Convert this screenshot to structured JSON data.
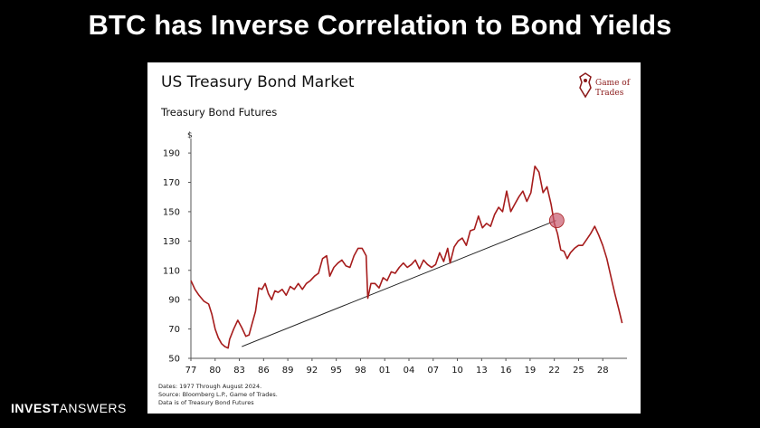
{
  "slide": {
    "title": "BTC has Inverse Correlation to Bond Yields",
    "brand_bold": "INVEST",
    "brand_light": "ANSWERS"
  },
  "logo": {
    "line1": "Game of",
    "line2": "Trades"
  },
  "chart_data": {
    "type": "line",
    "title": "US Treasury Bond Market",
    "subtitle": "Treasury Bond Futures",
    "ylabel": "$",
    "xlabel": "",
    "ylim": [
      50,
      195
    ],
    "xlim": [
      1977,
      2031
    ],
    "x_ticks": [
      1977,
      1980,
      1983,
      1986,
      1989,
      1992,
      1995,
      1998,
      2001,
      2004,
      2007,
      2010,
      2013,
      2016,
      2019,
      2022,
      2025,
      2028
    ],
    "x_tick_labels": [
      "77",
      "80",
      "83",
      "86",
      "89",
      "92",
      "95",
      "98",
      "01",
      "04",
      "07",
      "10",
      "13",
      "16",
      "19",
      "22",
      "25",
      "28"
    ],
    "y_ticks": [
      50,
      70,
      90,
      110,
      130,
      150,
      170,
      190
    ],
    "y_tick_labels": [
      "50",
      "70",
      "90",
      "110",
      "130",
      "150",
      "170",
      "190"
    ],
    "grid": false,
    "line_color": "#a61c1c",
    "series": [
      {
        "x": [
          1977.0,
          1977.5,
          1978.0,
          1978.6,
          1979.2,
          1979.6,
          1980.0,
          1980.4,
          1980.8,
          1981.2,
          1981.6,
          1981.8,
          1982.3,
          1982.8,
          1983.3,
          1983.8,
          1984.2,
          1984.5,
          1985.0,
          1985.4,
          1985.8,
          1986.2,
          1986.6,
          1987.0,
          1987.4,
          1987.8,
          1988.3,
          1988.8,
          1989.3,
          1989.8,
          1990.3,
          1990.8,
          1991.3,
          1991.8,
          1992.3,
          1992.8,
          1993.3,
          1993.8,
          1994.2,
          1994.7,
          1995.2,
          1995.7,
          1996.2,
          1996.7,
          1997.2,
          1997.7,
          1998.2,
          1998.7,
          1998.9,
          1999.3,
          1999.8,
          2000.3,
          2000.8,
          2001.3,
          2001.8,
          2002.3,
          2002.8,
          2003.3,
          2003.8,
          2004.3,
          2004.8,
          2005.3,
          2005.8,
          2006.3,
          2006.8,
          2007.3,
          2007.8,
          2008.3,
          2008.8,
          2009.1,
          2009.6,
          2010.1,
          2010.6,
          2011.1,
          2011.6,
          2012.1,
          2012.6,
          2013.1,
          2013.6,
          2014.1,
          2014.6,
          2015.1,
          2015.6,
          2016.1,
          2016.6,
          2017.1,
          2017.6,
          2018.1,
          2018.6,
          2019.1,
          2019.6,
          2020.1,
          2020.6,
          2021.1,
          2021.6,
          2022.0,
          2022.4,
          2022.8,
          2023.2,
          2023.6,
          2024.0,
          2024.5,
          2025.0,
          2025.5,
          2026.0,
          2026.5,
          2027.0,
          2027.5,
          2028.0,
          2028.5,
          2029.0,
          2029.5,
          2030.0,
          2030.4
        ],
        "y": [
          103,
          97,
          93,
          89,
          87,
          80,
          70,
          64,
          60,
          58,
          57,
          63,
          70,
          76,
          71,
          65,
          66,
          72,
          82,
          98,
          97,
          101,
          94,
          90,
          96,
          95,
          97,
          93,
          99,
          97,
          101,
          97,
          101,
          103,
          106,
          108,
          118,
          120,
          106,
          112,
          115,
          117,
          113,
          112,
          120,
          125,
          125,
          120,
          91,
          101,
          101,
          98,
          105,
          103,
          109,
          108,
          112,
          115,
          112,
          114,
          117,
          111,
          117,
          114,
          112,
          114,
          122,
          116,
          125,
          115,
          126,
          130,
          132,
          127,
          137,
          138,
          147,
          139,
          142,
          140,
          148,
          153,
          150,
          164,
          150,
          155,
          160,
          164,
          157,
          163,
          181,
          177,
          163,
          167,
          155,
          142,
          135,
          124,
          123,
          118,
          122,
          125,
          127,
          127,
          131,
          135,
          140,
          134,
          127,
          118,
          106,
          94,
          83,
          74
        ],
        "name": ""
      }
    ],
    "trendline": {
      "from": [
        1983.3,
        58
      ],
      "to": [
        2022.2,
        144
      ]
    },
    "highlight_point": {
      "x": 2022.3,
      "y": 144
    },
    "notes": [
      "Dates: 1977 Through August 2024.",
      "Source: Bloomberg L.P., Game of Trades.",
      "Data is of Treasury Bond Futures"
    ]
  }
}
